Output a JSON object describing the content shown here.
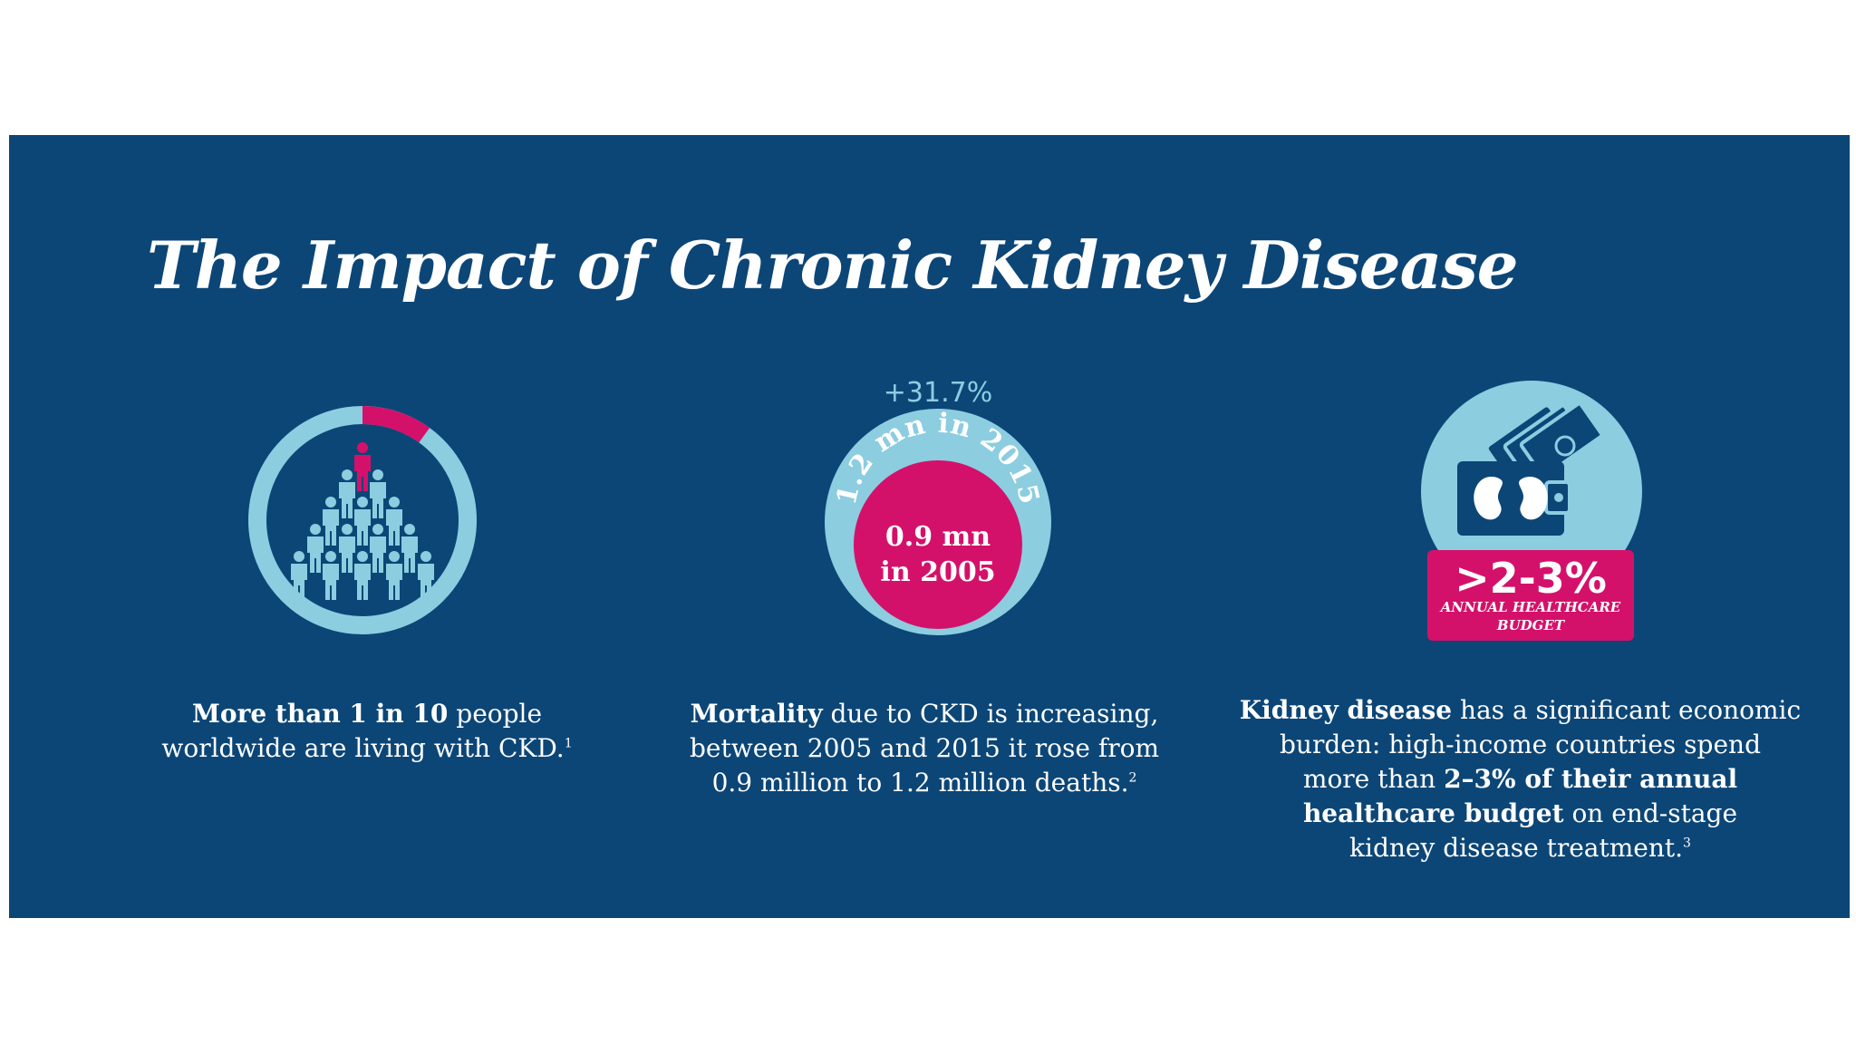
{
  "title": "The Impact of Chronic Kidney Disease",
  "colors": {
    "background": "#0c4677",
    "light_blue": "#8ccde0",
    "magenta": "#d4116a",
    "text": "#ffffff"
  },
  "stat1": {
    "icon": "people-ring-icon",
    "fraction": 0.1,
    "caption": {
      "bold_1": "More than 1 in 10",
      "text_1": " people",
      "text_2": "worldwide are living with CKD.",
      "ref": "1"
    }
  },
  "stat2": {
    "change": "+31.7%",
    "arc_label": "1.2 mn in 2015",
    "inner_line1": "0.9 mn",
    "inner_line2": "in 2005",
    "caption": {
      "bold_1": "Mortality",
      "text_1": " due to CKD is increasing,",
      "text_2": "between 2005 and 2015 it rose from",
      "text_3": "0.9 million to 1.2 million deaths.",
      "ref": "2"
    }
  },
  "stat3": {
    "icon": "wallet-kidney-icon",
    "badge_value": ">2-3%",
    "badge_line1": "ANNUAL HEALTHCARE",
    "badge_line2": "BUDGET",
    "caption": {
      "bold_1": "Kidney disease",
      "text_1": " has a significant economic",
      "text_2": "burden: high-income countries spend",
      "text_3": "more than ",
      "bold_2": "2–3% of their annual",
      "bold_3": "healthcare budget",
      "text_4": " on end-stage",
      "text_5": "kidney disease treatment.",
      "ref": "3"
    }
  }
}
